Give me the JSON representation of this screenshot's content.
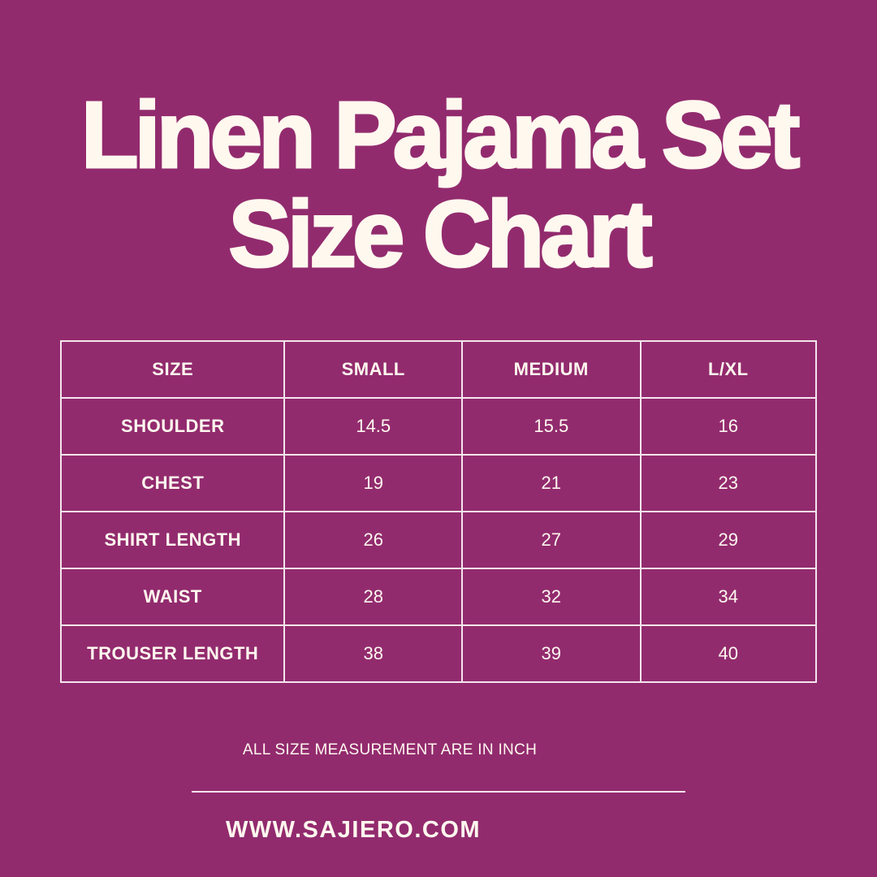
{
  "colors": {
    "background": "#922b6e",
    "text": "#fff8ef"
  },
  "title": {
    "line1": "Linen Pajama Set",
    "line2": "Size Chart"
  },
  "table": {
    "header": [
      "SIZE",
      "SMALL",
      "MEDIUM",
      "L/XL"
    ],
    "rows": [
      [
        "SHOULDER",
        "14.5",
        "15.5",
        "16"
      ],
      [
        "CHEST",
        "19",
        "21",
        "23"
      ],
      [
        "SHIRT LENGTH",
        "26",
        "27",
        "29"
      ],
      [
        "WAIST",
        "28",
        "32",
        "34"
      ],
      [
        "TROUSER LENGTH",
        "38",
        "39",
        "40"
      ]
    ]
  },
  "note": "ALL SIZE MEASUREMENT ARE IN INCH",
  "website": "WWW.SAJIERO.COM"
}
